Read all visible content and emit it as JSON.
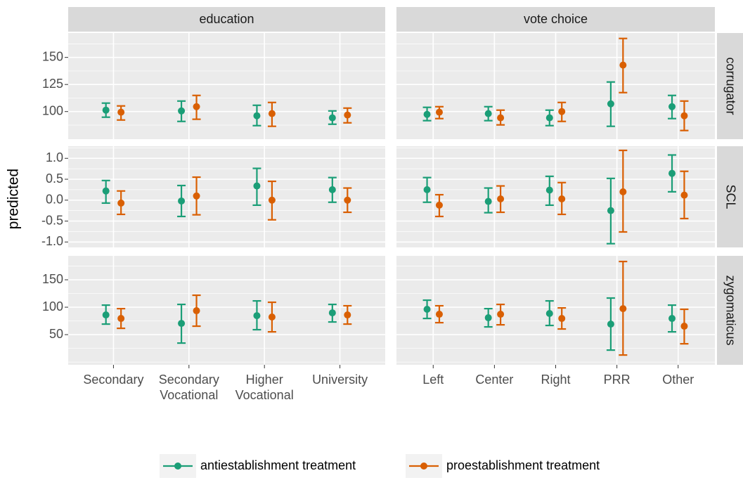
{
  "chart_data": {
    "type": "pointrange",
    "y_label": "predicted",
    "grid": true,
    "legend_position": "bottom",
    "series": [
      {
        "name": "antiestablishment treatment",
        "color": "#1b9e77"
      },
      {
        "name": "proestablishment treatment",
        "color": "#d95f02"
      }
    ],
    "columns": [
      {
        "name": "education",
        "categories": [
          [
            "Secondary"
          ],
          [
            "Secondary",
            "Vocational"
          ],
          [
            "Higher",
            "Vocational"
          ],
          [
            "University"
          ]
        ]
      },
      {
        "name": "vote choice",
        "categories": [
          [
            "Left"
          ],
          [
            "Center"
          ],
          [
            "Right"
          ],
          [
            "PRR"
          ],
          [
            "Other"
          ]
        ]
      }
    ],
    "rows": [
      {
        "name": "corrugator",
        "ylim": [
          74.5,
          172.5
        ],
        "yticks": [
          100,
          125,
          150
        ],
        "minor_yticks": [
          87.5,
          112.5,
          137.5,
          162.5
        ],
        "panels": [
          {
            "series": [
              {
                "values": [
                  101.3,
                  100.6,
                  96.1,
                  94.2
                ],
                "lower": [
                  94.8,
                  90.9,
                  87.0,
                  88.3
                ],
                "upper": [
                  107.8,
                  109.7,
                  105.8,
                  100.6
                ]
              },
              {
                "values": [
                  99.4,
                  104.5,
                  98.1,
                  96.8
                ],
                "lower": [
                  92.2,
                  92.9,
                  86.4,
                  89.6
                ],
                "upper": [
                  105.2,
                  114.9,
                  108.4,
                  103.2
                ]
              }
            ]
          },
          {
            "series": [
              {
                "values": [
                  97.4,
                  98.1,
                  94.2,
                  107.1,
                  104.5
                ],
                "lower": [
                  91.6,
                  91.6,
                  87.0,
                  86.4,
                  93.5
                ],
                "upper": [
                  103.9,
                  104.5,
                  101.3,
                  127.3,
                  114.9
                ]
              },
              {
                "values": [
                  99.4,
                  94.2,
                  100,
                  142.9,
                  96.1
                ],
                "lower": [
                  93.5,
                  87.7,
                  90.9,
                  117.5,
                  82.5
                ],
                "upper": [
                  104.5,
                  101.3,
                  108.4,
                  167.5,
                  109.7
                ]
              }
            ]
          }
        ]
      },
      {
        "name": "SCL",
        "ylim": [
          -1.13,
          1.29
        ],
        "yticks": [
          {
            "value": -1,
            "label": "-1.0"
          },
          -0.5,
          {
            "value": 0,
            "label": "0.0"
          },
          0.5,
          {
            "value": 1,
            "label": "1.0"
          }
        ],
        "minor_yticks": [
          -0.75,
          -0.25,
          0.25,
          0.75,
          1.25
        ],
        "panels": [
          {
            "series": [
              {
                "values": [
                  0.22,
                  -0.02,
                  0.34,
                  0.25
                ],
                "lower": [
                  -0.07,
                  -0.39,
                  -0.12,
                  -0.05
                ],
                "upper": [
                  0.47,
                  0.35,
                  0.76,
                  0.54
                ]
              },
              {
                "values": [
                  -0.07,
                  0.1,
                  0.0,
                  0.0
                ],
                "lower": [
                  -0.34,
                  -0.35,
                  -0.47,
                  -0.29
                ],
                "upper": [
                  0.22,
                  0.55,
                  0.45,
                  0.29
                ]
              }
            ]
          },
          {
            "series": [
              {
                "values": [
                  0.25,
                  -0.03,
                  0.24,
                  -0.25,
                  0.64
                ],
                "lower": [
                  -0.05,
                  -0.3,
                  -0.12,
                  -1.04,
                  0.2
                ],
                "upper": [
                  0.54,
                  0.29,
                  0.57,
                  0.52,
                  1.08
                ]
              },
              {
                "values": [
                  -0.12,
                  0.03,
                  0.03,
                  0.2,
                  0.12
                ],
                "lower": [
                  -0.39,
                  -0.29,
                  -0.34,
                  -0.76,
                  -0.44
                ],
                "upper": [
                  0.13,
                  0.34,
                  0.42,
                  1.19,
                  0.69
                ]
              }
            ]
          }
        ]
      },
      {
        "name": "zygomaticus",
        "ylim": [
          -5,
          193.6
        ],
        "yticks": [
          50,
          100,
          150
        ],
        "minor_yticks": [
          0,
          25,
          75,
          125,
          175
        ],
        "panels": [
          {
            "series": [
              {
                "values": [
                  85.9,
                  70.5,
                  84.6,
                  89.7
                ],
                "lower": [
                  69.2,
                  34.6,
                  59.0,
                  73.1
                ],
                "upper": [
                  103.8,
                  105.1,
                  111.5,
                  105.1
                ]
              },
              {
                "values": [
                  79.5,
                  93.6,
                  82.1,
                  85.9
                ],
                "lower": [
                  61.5,
                  65.4,
                  55.1,
                  69.2
                ],
                "upper": [
                  97.4,
                  121.8,
                  109.0,
                  102.6
                ]
              }
            ]
          },
          {
            "series": [
              {
                "values": [
                  96.2,
                  80.8,
                  88.5,
                  69.2,
                  79.5
                ],
                "lower": [
                  79.5,
                  64.1,
                  66.7,
                  21.8,
                  55.1
                ],
                "upper": [
                  112.8,
                  97.4,
                  111.5,
                  116.7,
                  103.8
                ]
              },
              {
                "values": [
                  87.2,
                  87.2,
                  79.5,
                  97.4,
                  65.4
                ],
                "lower": [
                  71.8,
                  67.9,
                  60.3,
                  12.8,
                  33.3
                ],
                "upper": [
                  102.6,
                  105.1,
                  98.7,
                  183.3,
                  96.2
                ]
              }
            ]
          }
        ]
      }
    ]
  }
}
